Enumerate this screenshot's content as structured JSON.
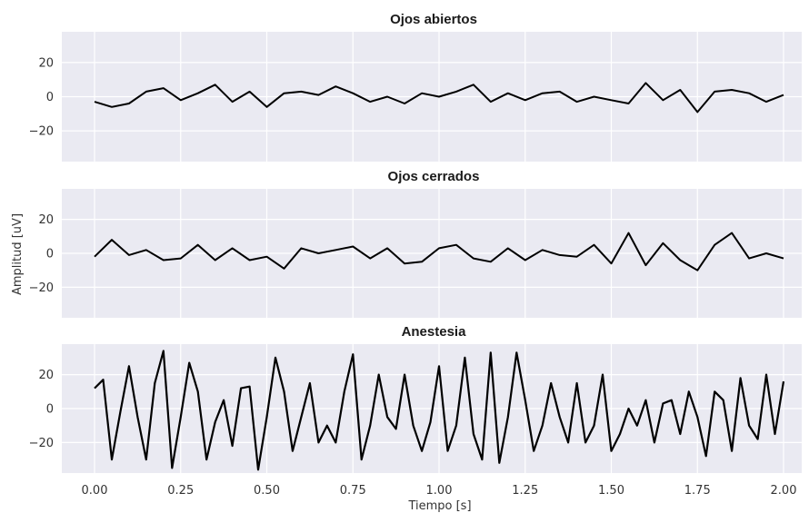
{
  "colors": {
    "panel_bg": "#eaeaf2",
    "grid": "#ffffff",
    "line": "#000000",
    "text": "#333333"
  },
  "chart_data": {
    "type": "line",
    "xlabel": "Tiempo [s]",
    "ylabel": "Amplitud [uV]",
    "x_range": [
      0,
      2
    ],
    "x_ticks": [
      "0.00",
      "0.25",
      "0.50",
      "0.75",
      "1.00",
      "1.25",
      "1.50",
      "1.75",
      "2.00"
    ],
    "grid": true,
    "panels": [
      {
        "title": "Ojos abiertos",
        "ylim": [
          -38,
          38
        ],
        "y_ticks": [
          20,
          0,
          -20
        ],
        "y_tick_labels": [
          "20",
          "0",
          "−20"
        ],
        "series": [
          {
            "x": [
              0,
              0.05,
              0.1,
              0.15,
              0.2,
              0.25,
              0.3,
              0.35,
              0.4,
              0.45,
              0.5,
              0.55,
              0.6,
              0.65,
              0.7,
              0.75,
              0.8,
              0.85,
              0.9,
              0.95,
              1.0,
              1.05,
              1.1,
              1.15,
              1.2,
              1.25,
              1.3,
              1.35,
              1.4,
              1.45,
              1.5,
              1.55,
              1.6,
              1.65,
              1.7,
              1.75,
              1.8,
              1.85,
              1.9,
              1.95,
              2.0
            ],
            "values": [
              -3,
              -6,
              -4,
              3,
              5,
              -2,
              2,
              7,
              -3,
              3,
              -6,
              2,
              3,
              1,
              6,
              2,
              -3,
              0,
              -4,
              2,
              0,
              3,
              7,
              -3,
              2,
              -2,
              2,
              3,
              -3,
              0,
              -2,
              -4,
              8,
              -2,
              4,
              -9,
              3,
              4,
              2,
              -3,
              1
            ]
          }
        ]
      },
      {
        "title": "Ojos cerrados",
        "ylim": [
          -38,
          38
        ],
        "y_ticks": [
          20,
          0,
          -20
        ],
        "y_tick_labels": [
          "20",
          "0",
          "−20"
        ],
        "series": [
          {
            "x": [
              0,
              0.05,
              0.1,
              0.15,
              0.2,
              0.25,
              0.3,
              0.35,
              0.4,
              0.45,
              0.5,
              0.55,
              0.6,
              0.65,
              0.7,
              0.75,
              0.8,
              0.85,
              0.9,
              0.95,
              1.0,
              1.05,
              1.1,
              1.15,
              1.2,
              1.25,
              1.3,
              1.35,
              1.4,
              1.45,
              1.5,
              1.55,
              1.6,
              1.65,
              1.7,
              1.75,
              1.8,
              1.85,
              1.9,
              1.95,
              2.0
            ],
            "values": [
              -2,
              8,
              -1,
              2,
              -4,
              -3,
              5,
              -4,
              3,
              -4,
              -2,
              -9,
              3,
              0,
              2,
              4,
              -3,
              3,
              -6,
              -5,
              3,
              5,
              -3,
              -5,
              3,
              -4,
              2,
              -1,
              -2,
              5,
              -6,
              12,
              -7,
              6,
              -4,
              -10,
              5,
              12,
              -3,
              0,
              -3
            ]
          }
        ]
      },
      {
        "title": "Anestesia",
        "ylim": [
          -38,
          38
        ],
        "y_ticks": [
          20,
          0,
          -20
        ],
        "y_tick_labels": [
          "20",
          "0",
          "−20"
        ],
        "series": [
          {
            "x": [
              0,
              0.025,
              0.05,
              0.075,
              0.1,
              0.125,
              0.15,
              0.175,
              0.2,
              0.225,
              0.25,
              0.275,
              0.3,
              0.325,
              0.35,
              0.375,
              0.4,
              0.425,
              0.45,
              0.475,
              0.5,
              0.525,
              0.55,
              0.575,
              0.6,
              0.625,
              0.65,
              0.675,
              0.7,
              0.725,
              0.75,
              0.775,
              0.8,
              0.825,
              0.85,
              0.875,
              0.9,
              0.925,
              0.95,
              0.975,
              1.0,
              1.025,
              1.05,
              1.075,
              1.1,
              1.125,
              1.15,
              1.175,
              1.2,
              1.225,
              1.25,
              1.275,
              1.3,
              1.325,
              1.35,
              1.375,
              1.4,
              1.425,
              1.45,
              1.475,
              1.5,
              1.525,
              1.55,
              1.575,
              1.6,
              1.625,
              1.65,
              1.675,
              1.7,
              1.725,
              1.75,
              1.775,
              1.8,
              1.825,
              1.85,
              1.875,
              1.9,
              1.925,
              1.95,
              1.975,
              2.0
            ],
            "values": [
              12,
              17,
              -30,
              -2,
              25,
              -5,
              -30,
              15,
              34,
              -35,
              -5,
              27,
              10,
              -30,
              -8,
              5,
              -22,
              12,
              13,
              -36,
              -5,
              30,
              10,
              -25,
              -5,
              15,
              -20,
              -10,
              -20,
              10,
              32,
              -30,
              -10,
              20,
              -5,
              -12,
              20,
              -10,
              -25,
              -8,
              25,
              -25,
              -10,
              30,
              -15,
              -30,
              33,
              -32,
              -5,
              33,
              5,
              -25,
              -10,
              15,
              -5,
              -20,
              15,
              -20,
              -10,
              20,
              -25,
              -15,
              0,
              -10,
              5,
              -20,
              3,
              5,
              -15,
              10,
              -5,
              -28,
              10,
              5,
              -25,
              18,
              -10,
              -18,
              20,
              -15,
              16
            ]
          }
        ]
      }
    ]
  }
}
